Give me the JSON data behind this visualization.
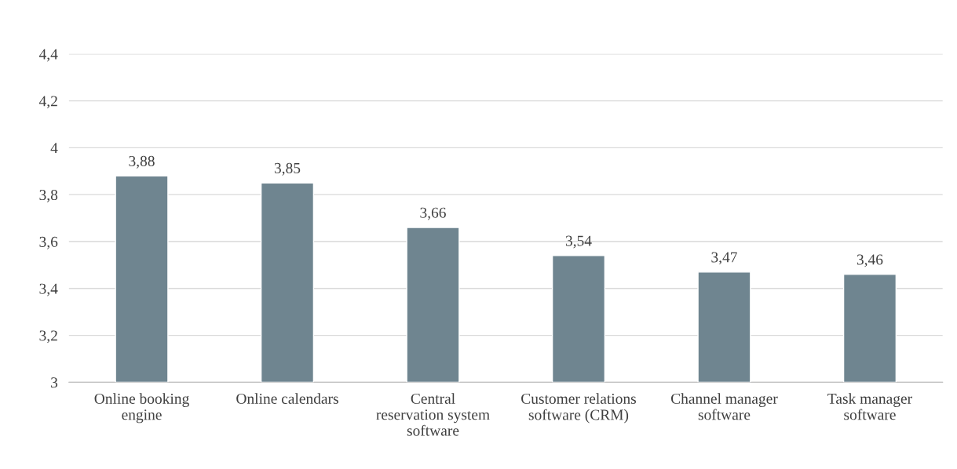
{
  "chart_data": {
    "type": "bar",
    "categories": [
      "Online booking engine",
      "Online calendars",
      "Central reservation system software",
      "Customer relations software (CRM)",
      "Channel manager software",
      "Task manager software"
    ],
    "values": [
      3.88,
      3.85,
      3.66,
      3.54,
      3.47,
      3.46
    ],
    "value_labels": [
      "3,88",
      "3,85",
      "3,66",
      "3,54",
      "3,47",
      "3,46"
    ],
    "color": "#6f8590",
    "ylim": [
      3,
      4.4
    ],
    "yticks": [
      3,
      {
        "value": 3.2,
        "label": "3,2"
      },
      {
        "value": 3.4,
        "label": "3,4"
      },
      {
        "value": 3.6,
        "label": "3,6"
      },
      {
        "value": 3.8,
        "label": "3,8"
      },
      4,
      {
        "value": 4.2,
        "label": "4,2"
      },
      {
        "value": 4.4,
        "label": "4,4"
      }
    ],
    "grid": "y",
    "legend": false
  }
}
